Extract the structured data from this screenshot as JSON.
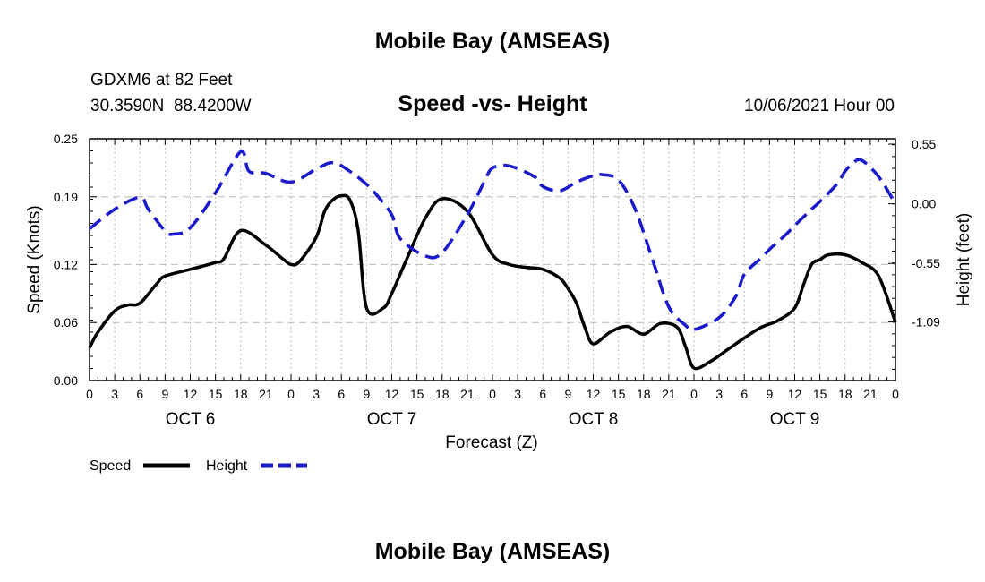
{
  "page": {
    "title_top": "Mobile Bay (AMSEAS)",
    "title_bottom": "Mobile Bay (AMSEAS)",
    "station": "GDXM6 at 82 Feet",
    "coords": "30.3590N  88.4200W",
    "run": "10/06/2021 Hour 00"
  },
  "chart_data": {
    "type": "line",
    "title": "Speed -vs- Height",
    "xlabel": "Forecast (Z)",
    "ylabel_left": "Speed (Knots)",
    "ylabel_right": "Height (feet)",
    "x_unit": "forecast hour",
    "xlim": [
      0,
      96
    ],
    "ylim_left": [
      0,
      0.25
    ],
    "ylim_right": [
      -1.63,
      0.6
    ],
    "xticks": [
      0,
      3,
      6,
      9,
      12,
      15,
      18,
      21,
      24,
      27,
      30,
      33,
      36,
      39,
      42,
      45,
      48,
      51,
      54,
      57,
      60,
      63,
      66,
      69,
      72,
      75,
      78,
      81,
      84,
      87,
      90,
      93,
      96
    ],
    "xtick_labels": [
      "0",
      "3",
      "6",
      "9",
      "12",
      "15",
      "18",
      "21",
      "0",
      "3",
      "6",
      "9",
      "12",
      "15",
      "18",
      "21",
      "0",
      "3",
      "6",
      "9",
      "12",
      "15",
      "18",
      "21",
      "0",
      "3",
      "6",
      "9",
      "12",
      "15",
      "18",
      "21",
      "0"
    ],
    "day_labels": [
      {
        "x": 12,
        "label": "OCT 6"
      },
      {
        "x": 36,
        "label": "OCT 7"
      },
      {
        "x": 60,
        "label": "OCT 8"
      },
      {
        "x": 84,
        "label": "OCT 9"
      }
    ],
    "yticks_left": [
      0.0,
      0.06,
      0.12,
      0.19,
      0.25
    ],
    "ytick_labels_left": [
      "0.00",
      "0.06",
      "0.12",
      "0.19",
      "0.25"
    ],
    "yticks_right": [
      -1.09,
      -0.55,
      0.0,
      0.55
    ],
    "ytick_labels_right": [
      "-1.09",
      "-0.55",
      "0.00",
      "0.55"
    ],
    "grid": true,
    "series": [
      {
        "name": "Speed",
        "axis": "left",
        "color": "#000000",
        "style": "solid",
        "x": [
          0,
          1,
          3,
          4.5,
          6,
          8,
          9,
          12,
          15,
          16,
          18,
          21,
          23,
          24,
          25,
          27,
          28,
          29,
          30,
          31,
          32,
          33,
          35,
          36,
          38,
          40,
          42,
          45,
          48,
          50,
          52,
          54,
          56,
          57,
          58,
          59,
          60,
          62,
          64,
          66,
          68,
          70,
          71,
          72,
          74,
          76,
          78,
          80,
          82,
          84,
          85,
          86,
          87,
          88,
          90,
          92,
          94,
          96
        ],
        "y": [
          0.034,
          0.05,
          0.072,
          0.078,
          0.08,
          0.1,
          0.108,
          0.115,
          0.122,
          0.126,
          0.155,
          0.14,
          0.126,
          0.12,
          0.123,
          0.148,
          0.175,
          0.187,
          0.191,
          0.187,
          0.155,
          0.075,
          0.075,
          0.09,
          0.13,
          0.168,
          0.188,
          0.175,
          0.13,
          0.12,
          0.117,
          0.115,
          0.106,
          0.095,
          0.08,
          0.055,
          0.038,
          0.05,
          0.056,
          0.048,
          0.059,
          0.055,
          0.035,
          0.013,
          0.02,
          0.032,
          0.044,
          0.055,
          0.062,
          0.075,
          0.098,
          0.12,
          0.125,
          0.13,
          0.13,
          0.122,
          0.108,
          0.06
        ]
      },
      {
        "name": "Height",
        "axis": "right",
        "color": "#1a1acc",
        "style": "dashed",
        "x": [
          0,
          3,
          6,
          7,
          9,
          10,
          12,
          15,
          18,
          19,
          21,
          24,
          27,
          29,
          31,
          33,
          34,
          36,
          37,
          40,
          42,
          45,
          47,
          48,
          50,
          53,
          54,
          56,
          58,
          60,
          61,
          63,
          65,
          67,
          69,
          71,
          72,
          75,
          77,
          78,
          80,
          81,
          82,
          83,
          84,
          86,
          87,
          89,
          90,
          91,
          92,
          94,
          96
        ],
        "y": [
          -0.23,
          -0.05,
          0.06,
          -0.05,
          -0.25,
          -0.28,
          -0.22,
          0.1,
          0.48,
          0.3,
          0.28,
          0.2,
          0.32,
          0.38,
          0.3,
          0.18,
          0.1,
          -0.1,
          -0.32,
          -0.48,
          -0.45,
          -0.1,
          0.2,
          0.33,
          0.35,
          0.25,
          0.16,
          0.12,
          0.2,
          0.26,
          0.27,
          0.22,
          -0.05,
          -0.5,
          -0.95,
          -1.12,
          -1.16,
          -1.05,
          -0.85,
          -0.65,
          -0.5,
          -0.42,
          -0.35,
          -0.28,
          -0.2,
          -0.05,
          0.02,
          0.18,
          0.3,
          0.38,
          0.4,
          0.25,
          0.0
        ]
      }
    ],
    "legend": [
      {
        "label": "Speed",
        "color": "#000000",
        "style": "solid"
      },
      {
        "label": "Height",
        "color": "#1a1acc",
        "style": "dashed"
      }
    ],
    "legend_position": "bottom-left"
  }
}
